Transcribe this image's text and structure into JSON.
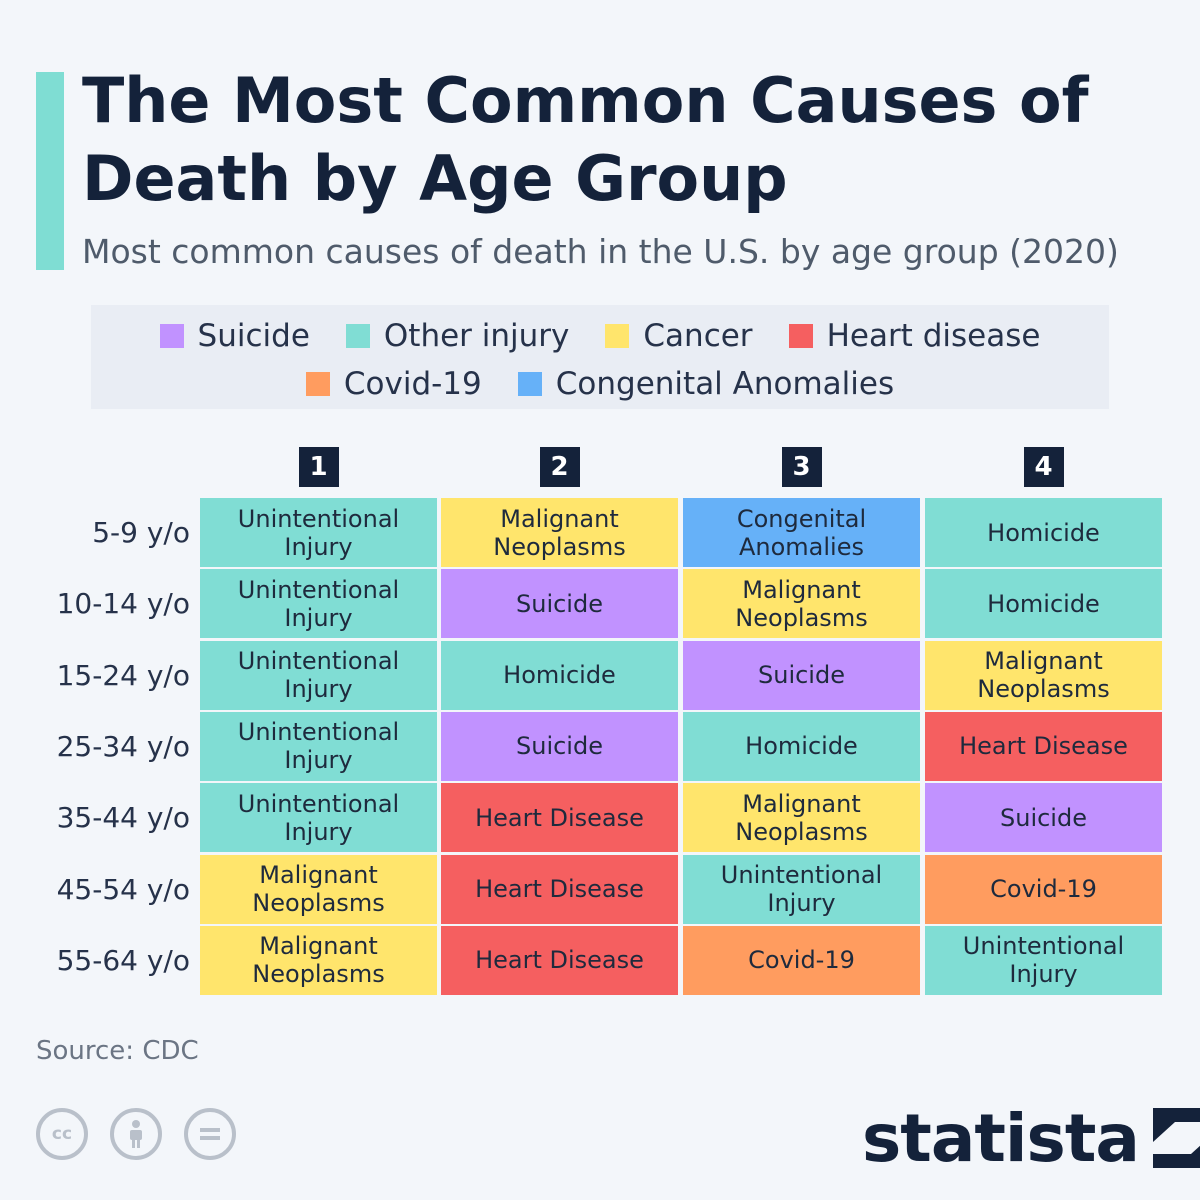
{
  "header": {
    "title": "The Most Common Causes of Death by Age Group",
    "subtitle": "Most common causes of death in the U.S. by age group (2020)"
  },
  "legend": [
    {
      "label": "Suicide",
      "color": "#c192ff"
    },
    {
      "label": "Other injury",
      "color": "#80ddd4"
    },
    {
      "label": "Cancer",
      "color": "#ffe56c"
    },
    {
      "label": "Heart disease",
      "color": "#f55f60"
    },
    {
      "label": "Covid-19",
      "color": "#ff9c5f"
    },
    {
      "label": "Congenital Anomalies",
      "color": "#66b1f8"
    }
  ],
  "chart_data": {
    "type": "table",
    "columns": [
      "1",
      "2",
      "3",
      "4"
    ],
    "rows": [
      {
        "age_group": "5-9 y/o",
        "causes": [
          {
            "label": "Unintentional Injury",
            "category": "Other injury"
          },
          {
            "label": "Malignant Neoplasms",
            "category": "Cancer"
          },
          {
            "label": "Congenital Anomalies",
            "category": "Congenital Anomalies"
          },
          {
            "label": "Homicide",
            "category": "Other injury"
          }
        ]
      },
      {
        "age_group": "10-14 y/o",
        "causes": [
          {
            "label": "Unintentional Injury",
            "category": "Other injury"
          },
          {
            "label": "Suicide",
            "category": "Suicide"
          },
          {
            "label": "Malignant Neoplasms",
            "category": "Cancer"
          },
          {
            "label": "Homicide",
            "category": "Other injury"
          }
        ]
      },
      {
        "age_group": "15-24 y/o",
        "causes": [
          {
            "label": "Unintentional Injury",
            "category": "Other injury"
          },
          {
            "label": "Homicide",
            "category": "Other injury"
          },
          {
            "label": "Suicide",
            "category": "Suicide"
          },
          {
            "label": "Malignant Neoplasms",
            "category": "Cancer"
          }
        ]
      },
      {
        "age_group": "25-34 y/o",
        "causes": [
          {
            "label": "Unintentional Injury",
            "category": "Other injury"
          },
          {
            "label": "Suicide",
            "category": "Suicide"
          },
          {
            "label": "Homicide",
            "category": "Other injury"
          },
          {
            "label": "Heart Disease",
            "category": "Heart disease"
          }
        ]
      },
      {
        "age_group": "35-44 y/o",
        "causes": [
          {
            "label": "Unintentional Injury",
            "category": "Other injury"
          },
          {
            "label": "Heart Disease",
            "category": "Heart disease"
          },
          {
            "label": "Malignant Neoplasms",
            "category": "Cancer"
          },
          {
            "label": "Suicide",
            "category": "Suicide"
          }
        ]
      },
      {
        "age_group": "45-54 y/o",
        "causes": [
          {
            "label": "Malignant Neoplasms",
            "category": "Cancer"
          },
          {
            "label": "Heart Disease",
            "category": "Heart disease"
          },
          {
            "label": "Unintentional Injury",
            "category": "Other injury"
          },
          {
            "label": "Covid-19",
            "category": "Covid-19"
          }
        ]
      },
      {
        "age_group": "55-64 y/o",
        "causes": [
          {
            "label": "Malignant Neoplasms",
            "category": "Cancer"
          },
          {
            "label": "Heart Disease",
            "category": "Heart disease"
          },
          {
            "label": "Covid-19",
            "category": "Covid-19"
          },
          {
            "label": "Unintentional Injury",
            "category": "Other injury"
          }
        ]
      }
    ]
  },
  "footer": {
    "source": "Source: CDC",
    "brand": "statista"
  },
  "icons": [
    "creative-commons-icon",
    "attribution-icon",
    "no-derivatives-icon",
    "statista-logo-icon"
  ]
}
